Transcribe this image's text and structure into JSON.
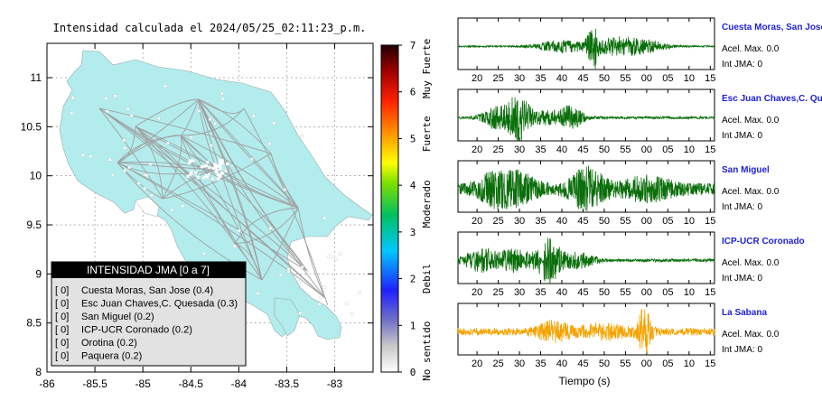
{
  "chart_data": [
    {
      "type": "map",
      "title": "Intensidad calculada el 2024/05/25_02:11:23_p.m.",
      "xlim": [
        -86,
        -82.6
      ],
      "ylim": [
        8,
        11.35
      ],
      "x_ticks": [
        "-86",
        "-85.5",
        "-85",
        "-84.5",
        "-84",
        "-83.5",
        "-83"
      ],
      "y_ticks": [
        "8",
        "8.5",
        "9",
        "9.5",
        "10",
        "10.5",
        "11"
      ],
      "grid": true,
      "land_color": "#b3ecec",
      "legend": {
        "title": "INTENSIDAD JMA [0 a 7]",
        "position": "bottom-left",
        "items": [
          {
            "value": "[ 0]",
            "label": "Cuesta Moras, San Jose (0.4)"
          },
          {
            "value": "[ 0]",
            "label": "Esc Juan Chaves,C. Quesada (0.3)"
          },
          {
            "value": "[ 0]",
            "label": "San Miguel (0.2)"
          },
          {
            "value": "[ 0]",
            "label": "ICP-UCR Coronado (0.2)"
          },
          {
            "value": "[ 0]",
            "label": "Orotina (0.2)"
          },
          {
            "value": "[ 0]",
            "label": "Paquera (0.2)"
          }
        ]
      }
    },
    {
      "type": "colorbar",
      "range": [
        0,
        7
      ],
      "ticks": [
        "0",
        "1",
        "2",
        "3",
        "4",
        "5",
        "6",
        "7"
      ],
      "level_labels": [
        "No sentido",
        "Debil",
        "Moderado",
        "Fuerte",
        "Muy Fuerte"
      ]
    },
    {
      "type": "line",
      "x_ticks": [
        "20",
        "25",
        "30",
        "35",
        "40",
        "45",
        "50",
        "55",
        "00",
        "05",
        "10",
        "15"
      ],
      "xlabel": "Tiempo (s)",
      "series": [
        {
          "name": "Cuesta Moras, San Jose",
          "color": "#0a6e0a",
          "accel": "Acel. Max. 0.0",
          "int": "Int JMA: 0",
          "base": 0.03,
          "bursts": [
            [
              47.3,
              0.95,
              1.2
            ],
            [
              40,
              0.25,
              6
            ],
            [
              53,
              0.35,
              6
            ],
            [
              60,
              0.2,
              5
            ]
          ]
        },
        {
          "name": "Esc Juan Chaves,C. Quesada",
          "color": "#0a6e0a",
          "accel": "Acel. Max. 0.0",
          "int": "Int JMA: 0",
          "base": 0.05,
          "bursts": [
            [
              29.5,
              0.95,
              3
            ],
            [
              24,
              0.4,
              3
            ],
            [
              42,
              0.45,
              3
            ],
            [
              36,
              0.25,
              4
            ]
          ]
        },
        {
          "name": "San Miguel",
          "color": "#0a6e0a",
          "accel": "Acel. Max. 0.0",
          "int": "Int JMA: 0",
          "base": 0.25,
          "bursts": [
            [
              46,
              0.75,
              4
            ],
            [
              24,
              0.55,
              4
            ],
            [
              30,
              0.5,
              4
            ],
            [
              60,
              0.35,
              6
            ]
          ]
        },
        {
          "name": "ICP-UCR Coronado",
          "color": "#0a6e0a",
          "accel": "Acel. Max. 0.0",
          "int": "Int JMA: 0",
          "base": 0.06,
          "bursts": [
            [
              37,
              0.95,
              3
            ],
            [
              21,
              0.5,
              4
            ],
            [
              29,
              0.45,
              4
            ],
            [
              44,
              0.3,
              4
            ]
          ]
        },
        {
          "name": "La Sabana",
          "color": "#f5a300",
          "accel": "Acel. Max. 0.0",
          "int": "Int JMA: 0",
          "base": 0.15,
          "bursts": [
            [
              59.5,
              0.95,
              1.5
            ],
            [
              38,
              0.35,
              4
            ],
            [
              50,
              0.25,
              6
            ]
          ]
        }
      ]
    }
  ]
}
